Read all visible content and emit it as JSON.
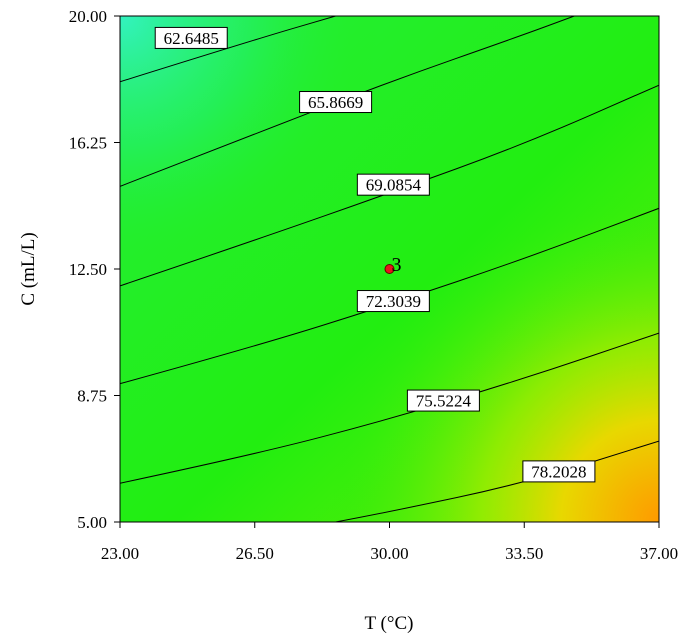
{
  "chart_data": {
    "type": "contour",
    "xlabel": "T (°C)",
    "ylabel": "C (mL/L)",
    "xlim": [
      23,
      37
    ],
    "ylim": [
      5,
      20
    ],
    "x_ticks": [
      "23.00",
      "26.50",
      "30.00",
      "33.50",
      "37.00"
    ],
    "y_ticks": [
      "5.00",
      "8.75",
      "12.50",
      "16.25",
      "20.00"
    ],
    "x_tick_values": [
      23,
      26.5,
      30,
      33.5,
      37
    ],
    "y_tick_values": [
      5,
      8.75,
      12.5,
      16.25,
      20
    ],
    "contours": [
      {
        "level": "62.6485",
        "points": [
          [
            23,
            18.05
          ],
          [
            26.5,
            19.3
          ],
          [
            28.6,
            20
          ]
        ],
        "label_at": [
          24.85,
          19.35
        ]
      },
      {
        "level": "65.8669",
        "points": [
          [
            23,
            14.95
          ],
          [
            26.5,
            16.5
          ],
          [
            30,
            18.05
          ],
          [
            33.5,
            19.45
          ],
          [
            34.8,
            20
          ]
        ],
        "label_at": [
          28.6,
          17.45
        ]
      },
      {
        "level": "69.0854",
        "points": [
          [
            23,
            12.0
          ],
          [
            26.5,
            13.35
          ],
          [
            30,
            14.75
          ],
          [
            33.5,
            16.2
          ],
          [
            37,
            17.95
          ]
        ],
        "label_at": [
          30.1,
          15.0
        ]
      },
      {
        "level": "72.3039",
        "points": [
          [
            23,
            9.1
          ],
          [
            26.5,
            10.2
          ],
          [
            30,
            11.45
          ],
          [
            33.5,
            12.8
          ],
          [
            37,
            14.3
          ]
        ],
        "label_at": [
          30.1,
          11.55
        ]
      },
      {
        "level": "75.5224",
        "points": [
          [
            23,
            6.15
          ],
          [
            26.5,
            7.0
          ],
          [
            30,
            8.05
          ],
          [
            33.5,
            9.25
          ],
          [
            37,
            10.6
          ]
        ],
        "label_at": [
          31.4,
          8.6
        ]
      },
      {
        "level": "78.2028",
        "points": [
          [
            28.6,
            5.0
          ],
          [
            30,
            5.3
          ],
          [
            33.5,
            6.15
          ],
          [
            37,
            7.4
          ]
        ],
        "label_at": [
          34.4,
          6.5
        ]
      }
    ],
    "center_point": {
      "x": 30,
      "y": 12.5,
      "label": "3"
    },
    "colors": {
      "top_left": "#33f2a8",
      "mid": "#22ee10",
      "bottom_right": "#ff9a00"
    }
  }
}
